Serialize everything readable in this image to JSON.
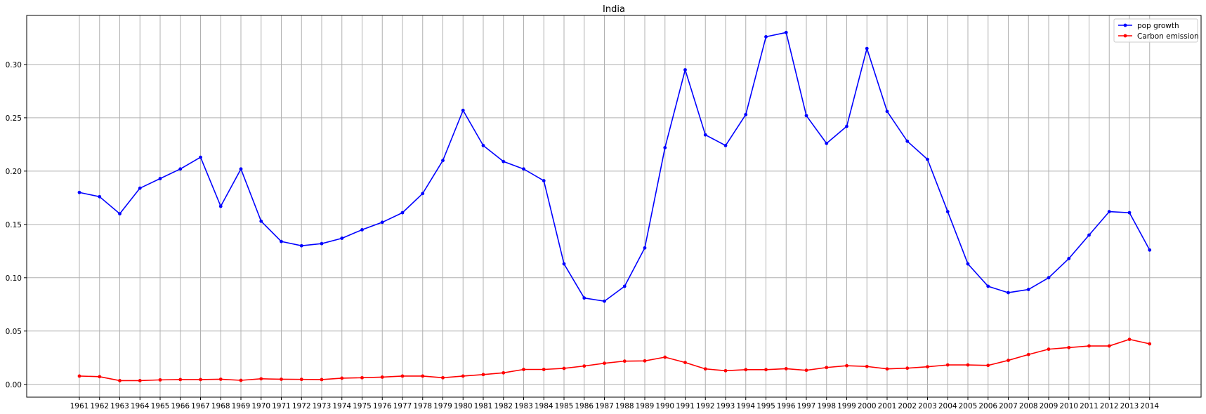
{
  "chart_data": {
    "type": "line",
    "title": "India",
    "xlabel": "",
    "ylabel": "",
    "categories": [
      "1961",
      "1962",
      "1963",
      "1964",
      "1965",
      "1966",
      "1967",
      "1968",
      "1969",
      "1970",
      "1971",
      "1972",
      "1973",
      "1974",
      "1975",
      "1976",
      "1977",
      "1978",
      "1979",
      "1980",
      "1981",
      "1982",
      "1983",
      "1984",
      "1985",
      "1986",
      "1987",
      "1988",
      "1989",
      "1990",
      "1991",
      "1992",
      "1993",
      "1994",
      "1995",
      "1996",
      "1997",
      "1998",
      "1999",
      "2000",
      "2001",
      "2002",
      "2003",
      "2004",
      "2005",
      "2006",
      "2007",
      "2008",
      "2009",
      "2010",
      "2011",
      "2012",
      "2013",
      "2014"
    ],
    "ylim": [
      -0.012,
      0.346
    ],
    "yticks": [
      "0.00",
      "0.05",
      "0.10",
      "0.15",
      "0.20",
      "0.25",
      "0.30"
    ],
    "grid": true,
    "legend_position": "top-right",
    "series": [
      {
        "name": "pop growth",
        "color": "#0000ff",
        "marker": "dot",
        "values": [
          0.18,
          0.176,
          0.16,
          0.184,
          0.193,
          0.202,
          0.213,
          0.167,
          0.202,
          0.153,
          0.134,
          0.13,
          0.132,
          0.137,
          0.145,
          0.152,
          0.161,
          0.179,
          0.21,
          0.257,
          0.224,
          0.209,
          0.202,
          0.191,
          0.113,
          0.081,
          0.078,
          0.092,
          0.128,
          0.222,
          0.295,
          0.234,
          0.224,
          0.253,
          0.326,
          0.33,
          0.252,
          0.226,
          0.242,
          0.315,
          0.256,
          0.228,
          0.211,
          0.162,
          0.113,
          0.092,
          0.086,
          0.089,
          0.1,
          0.118,
          0.14,
          0.162,
          0.161,
          0.126
        ]
      },
      {
        "name": "Carbon emission",
        "color": "#ff0000",
        "marker": "dot",
        "values": [
          0.0078,
          0.0072,
          0.0035,
          0.0035,
          0.0042,
          0.0045,
          0.0045,
          0.0048,
          0.0038,
          0.0052,
          0.0048,
          0.0047,
          0.0045,
          0.0058,
          0.0062,
          0.0068,
          0.0078,
          0.0078,
          0.0062,
          0.0078,
          0.0092,
          0.0108,
          0.014,
          0.014,
          0.015,
          0.0172,
          0.0198,
          0.0218,
          0.022,
          0.0255,
          0.0205,
          0.0145,
          0.0128,
          0.0138,
          0.0138,
          0.0147,
          0.0132,
          0.0158,
          0.0175,
          0.0168,
          0.0145,
          0.0152,
          0.0165,
          0.0182,
          0.0182,
          0.0178,
          0.0225,
          0.028,
          0.033,
          0.0345,
          0.036,
          0.036,
          0.0422,
          0.038
        ]
      }
    ]
  }
}
